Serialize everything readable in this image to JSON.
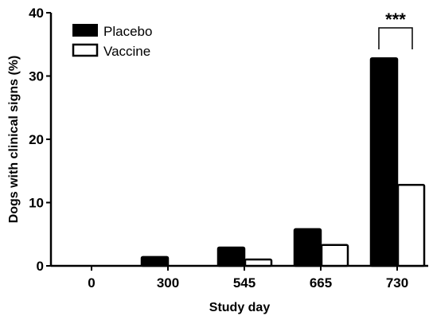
{
  "chart_data": {
    "type": "bar",
    "categories": [
      "0",
      "300",
      "545",
      "665",
      "730"
    ],
    "series": [
      {
        "name": "Placebo",
        "values": [
          0,
          1.4,
          2.9,
          5.8,
          32.8
        ],
        "fill": "#000000",
        "stroke": "#000000"
      },
      {
        "name": "Vaccine",
        "values": [
          0,
          0,
          1.0,
          3.3,
          12.8
        ],
        "fill": "#ffffff",
        "stroke": "#000000"
      }
    ],
    "xlabel": "Study day",
    "ylabel": "Dogs with clinical signs (%)",
    "ylim": [
      0,
      40
    ],
    "yticks": [
      "0",
      "10",
      "20",
      "30",
      "40"
    ],
    "grid": false,
    "legend": {
      "position": "top-left",
      "entries": [
        "Placebo",
        "Vaccine"
      ]
    },
    "annotations": [
      {
        "text": "***",
        "category": "730",
        "type": "significance-bracket"
      }
    ]
  }
}
